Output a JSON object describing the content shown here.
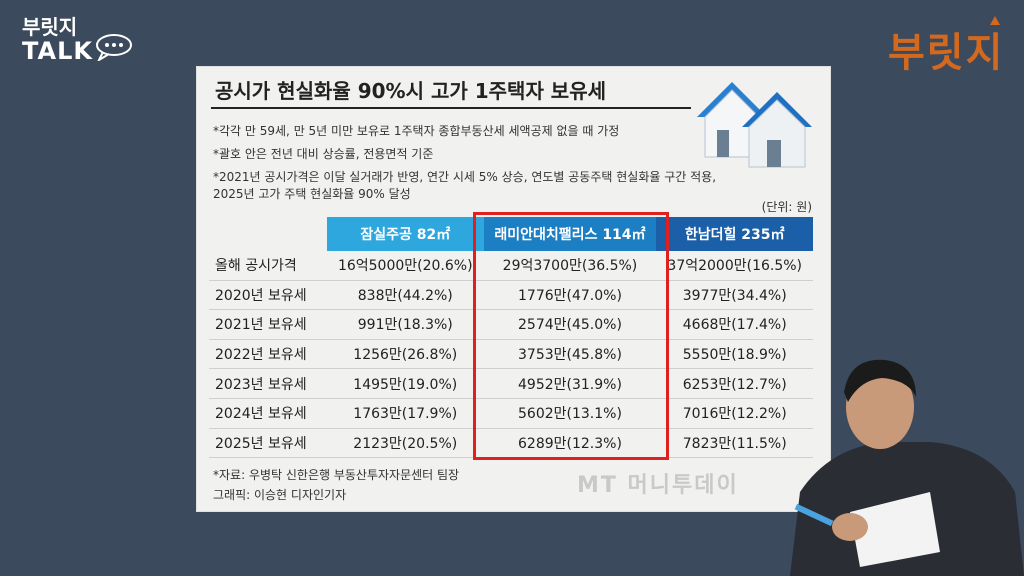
{
  "brand": {
    "left_line1": "부릿지",
    "left_line2": "TALK",
    "right_logo": "부릿지"
  },
  "card": {
    "title": "공시가 현실화율 90%시 고가 1주택자 보유세",
    "notes": [
      "*각각 만 59세, 만 5년 미만 보유로 1주택자 종합부동산세 세액공제 없을 때 가정",
      "*괄호 안은 전년 대비 상승률, 전용면적 기준",
      "*2021년 공시가격은 이달 실거래가 반영, 연간 시세 5% 상승, 연도별 공동주택 현실화율 구간 적용,",
      "2025년 고가 주택 현실화율 90% 달성"
    ],
    "unit": "(단위: 원)",
    "columns": [
      "잠실주공 82㎡",
      "래미안대치팰리스 114㎡",
      "한남더힐 235㎡"
    ],
    "rows": [
      {
        "label": "올해 공시가격",
        "values": [
          "16억5000만(20.6%)",
          "29억3700만(36.5%)",
          "37억2000만(16.5%)"
        ]
      },
      {
        "label": "2020년 보유세",
        "values": [
          "838만(44.2%)",
          "1776만(47.0%)",
          "3977만(34.4%)"
        ]
      },
      {
        "label": "2021년 보유세",
        "values": [
          "991만(18.3%)",
          "2574만(45.0%)",
          "4668만(17.4%)"
        ]
      },
      {
        "label": "2022년 보유세",
        "values": [
          "1256만(26.8%)",
          "3753만(45.8%)",
          "5550만(18.9%)"
        ]
      },
      {
        "label": "2023년 보유세",
        "values": [
          "1495만(19.0%)",
          "4952만(31.9%)",
          "6253만(12.7%)"
        ]
      },
      {
        "label": "2024년 보유세",
        "values": [
          "1763만(17.9%)",
          "5602만(13.1%)",
          "7016만(12.2%)"
        ]
      },
      {
        "label": "2025년 보유세",
        "values": [
          "2123만(20.5%)",
          "6289만(12.3%)",
          "7823만(11.5%)"
        ]
      }
    ],
    "source": "*자료: 우병탁 신한은행 부동산투자자문센터 팀장",
    "graphic": "그래픽: 이승현 디자인기자",
    "watermark": "MT 머니투데이"
  },
  "colors": {
    "bg": "#3b4a5c",
    "highlight": "#e02020",
    "header_blue": "#1c7fc4"
  }
}
